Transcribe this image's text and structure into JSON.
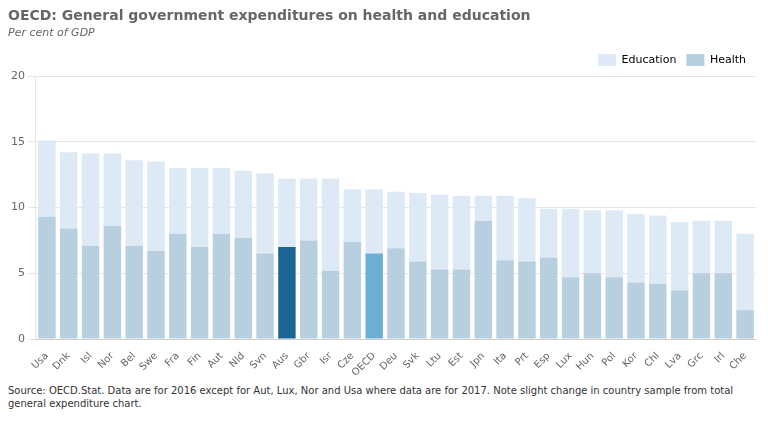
{
  "chart_data": {
    "type": "bar",
    "stacked": true,
    "title": "OECD: General government expenditures on health and education",
    "subtitle": "Per cent of GDP",
    "source": "Source: OECD.Stat.  Data are for 2016 except for Aut, Lux, Nor and Usa where data are for 2017. Note slight change in country sample from total general expenditure chart.",
    "categories": [
      "Usa",
      "Dnk",
      "Isl",
      "Nor",
      "Bel",
      "Swe",
      "Fra",
      "Fin",
      "Aut",
      "Nld",
      "Svn",
      "Aus",
      "Gbr",
      "Isr",
      "Cze",
      "OECD",
      "Deu",
      "Svk",
      "Ltu",
      "Est",
      "Jpn",
      "Ita",
      "Prt",
      "Esp",
      "Lux",
      "Hun",
      "Pol",
      "Kor",
      "Chl",
      "Lva",
      "Grc",
      "Irl",
      "Che"
    ],
    "series": [
      {
        "name": "Health",
        "color": "#b8cfe0",
        "colors": [
          "#b8cfe0",
          "#b8cfe0",
          "#b8cfe0",
          "#b8cfe0",
          "#b8cfe0",
          "#b8cfe0",
          "#b8cfe0",
          "#b8cfe0",
          "#b8cfe0",
          "#b8cfe0",
          "#b8cfe0",
          "#1a6496",
          "#b8cfe0",
          "#b8cfe0",
          "#b8cfe0",
          "#6baed6",
          "#b8cfe0",
          "#b8cfe0",
          "#b8cfe0",
          "#b8cfe0",
          "#b8cfe0",
          "#b8cfe0",
          "#b8cfe0",
          "#b8cfe0",
          "#b8cfe0",
          "#b8cfe0",
          "#b8cfe0",
          "#b8cfe0",
          "#b8cfe0",
          "#b8cfe0",
          "#b8cfe0",
          "#b8cfe0",
          "#b8cfe0"
        ],
        "values": [
          9.3,
          8.4,
          7.1,
          8.6,
          7.1,
          6.7,
          8.0,
          7.0,
          8.0,
          7.7,
          6.5,
          7.0,
          7.5,
          5.2,
          7.4,
          6.5,
          6.9,
          5.9,
          5.3,
          5.3,
          9.0,
          6.0,
          5.9,
          6.2,
          4.7,
          5.0,
          4.7,
          4.3,
          4.2,
          3.7,
          5.0,
          5.0,
          2.2
        ]
      },
      {
        "name": "Education",
        "color": "#ddeaf5",
        "values": [
          5.8,
          5.8,
          7.0,
          5.5,
          6.5,
          6.8,
          5.0,
          6.0,
          5.0,
          5.1,
          6.1,
          5.2,
          4.7,
          7.0,
          4.0,
          4.9,
          4.3,
          5.2,
          5.7,
          5.6,
          1.9,
          4.9,
          4.8,
          3.7,
          5.2,
          4.8,
          5.1,
          5.2,
          5.2,
          5.2,
          4.0,
          4.0,
          5.8
        ]
      }
    ],
    "ylim": [
      0,
      20
    ],
    "yticks": [
      0,
      5,
      10,
      15,
      20
    ],
    "grid": true,
    "legend": "upper right"
  }
}
